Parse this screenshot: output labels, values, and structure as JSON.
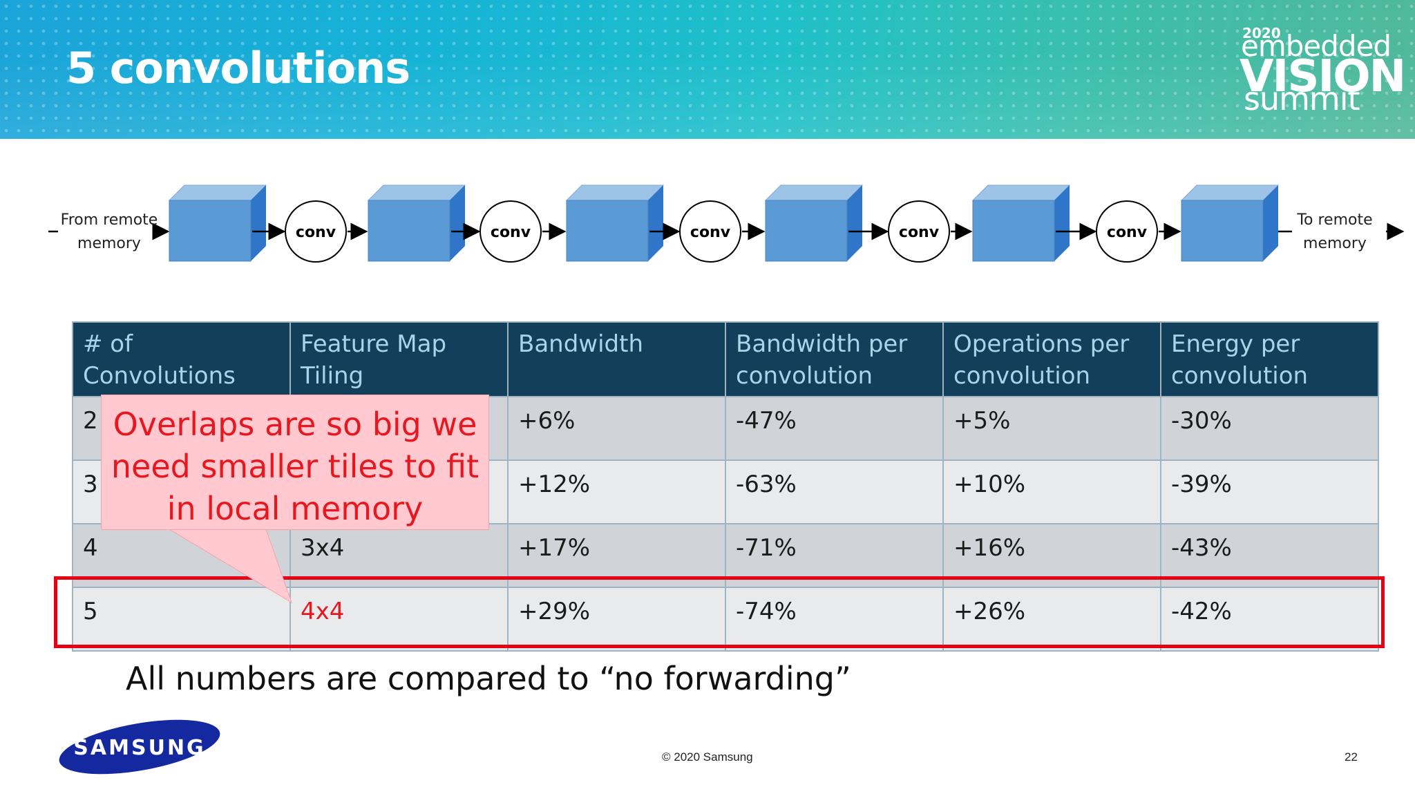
{
  "header": {
    "title": "5 convolutions",
    "logo": {
      "year": "2020",
      "line1": "embedded",
      "line2": "VISION",
      "line3": "summit"
    }
  },
  "diagram": {
    "source_label": [
      "From remote",
      "memory"
    ],
    "sink_label": [
      "To remote",
      "memory"
    ],
    "op_label": "conv",
    "cube_count": 6,
    "conv_count": 5,
    "colors": {
      "cube_front": "#5b9bd5",
      "cube_top": "#9dc3e6",
      "cube_side": "#2f75c8"
    }
  },
  "table": {
    "headers": [
      [
        "# of Convolutions"
      ],
      [
        "Feature Map",
        "Tiling"
      ],
      [
        "Bandwidth"
      ],
      [
        "Bandwidth per",
        "convolution"
      ],
      [
        "Operations per",
        "convolution"
      ],
      [
        "Energy per",
        "convolution"
      ]
    ],
    "rows": [
      [
        "2",
        "",
        "+6%",
        "-47%",
        "+5%",
        "-30%"
      ],
      [
        "3",
        "",
        "+12%",
        "-63%",
        "+10%",
        "-39%"
      ],
      [
        "4",
        "3x4",
        "+17%",
        "-71%",
        "+16%",
        "-43%"
      ],
      [
        "5",
        "4x4",
        "+29%",
        "-74%",
        "+26%",
        "-42%"
      ]
    ],
    "highlight_color": "#e60012"
  },
  "callout": {
    "lines": [
      "Overlaps are so big we",
      "need smaller tiles to fit",
      "in local memory"
    ]
  },
  "footnote": "All numbers are compared to “no forwarding”",
  "footer": {
    "brand": "SAMSUNG",
    "copyright": "© 2020 Samsung",
    "page_number": "22"
  }
}
